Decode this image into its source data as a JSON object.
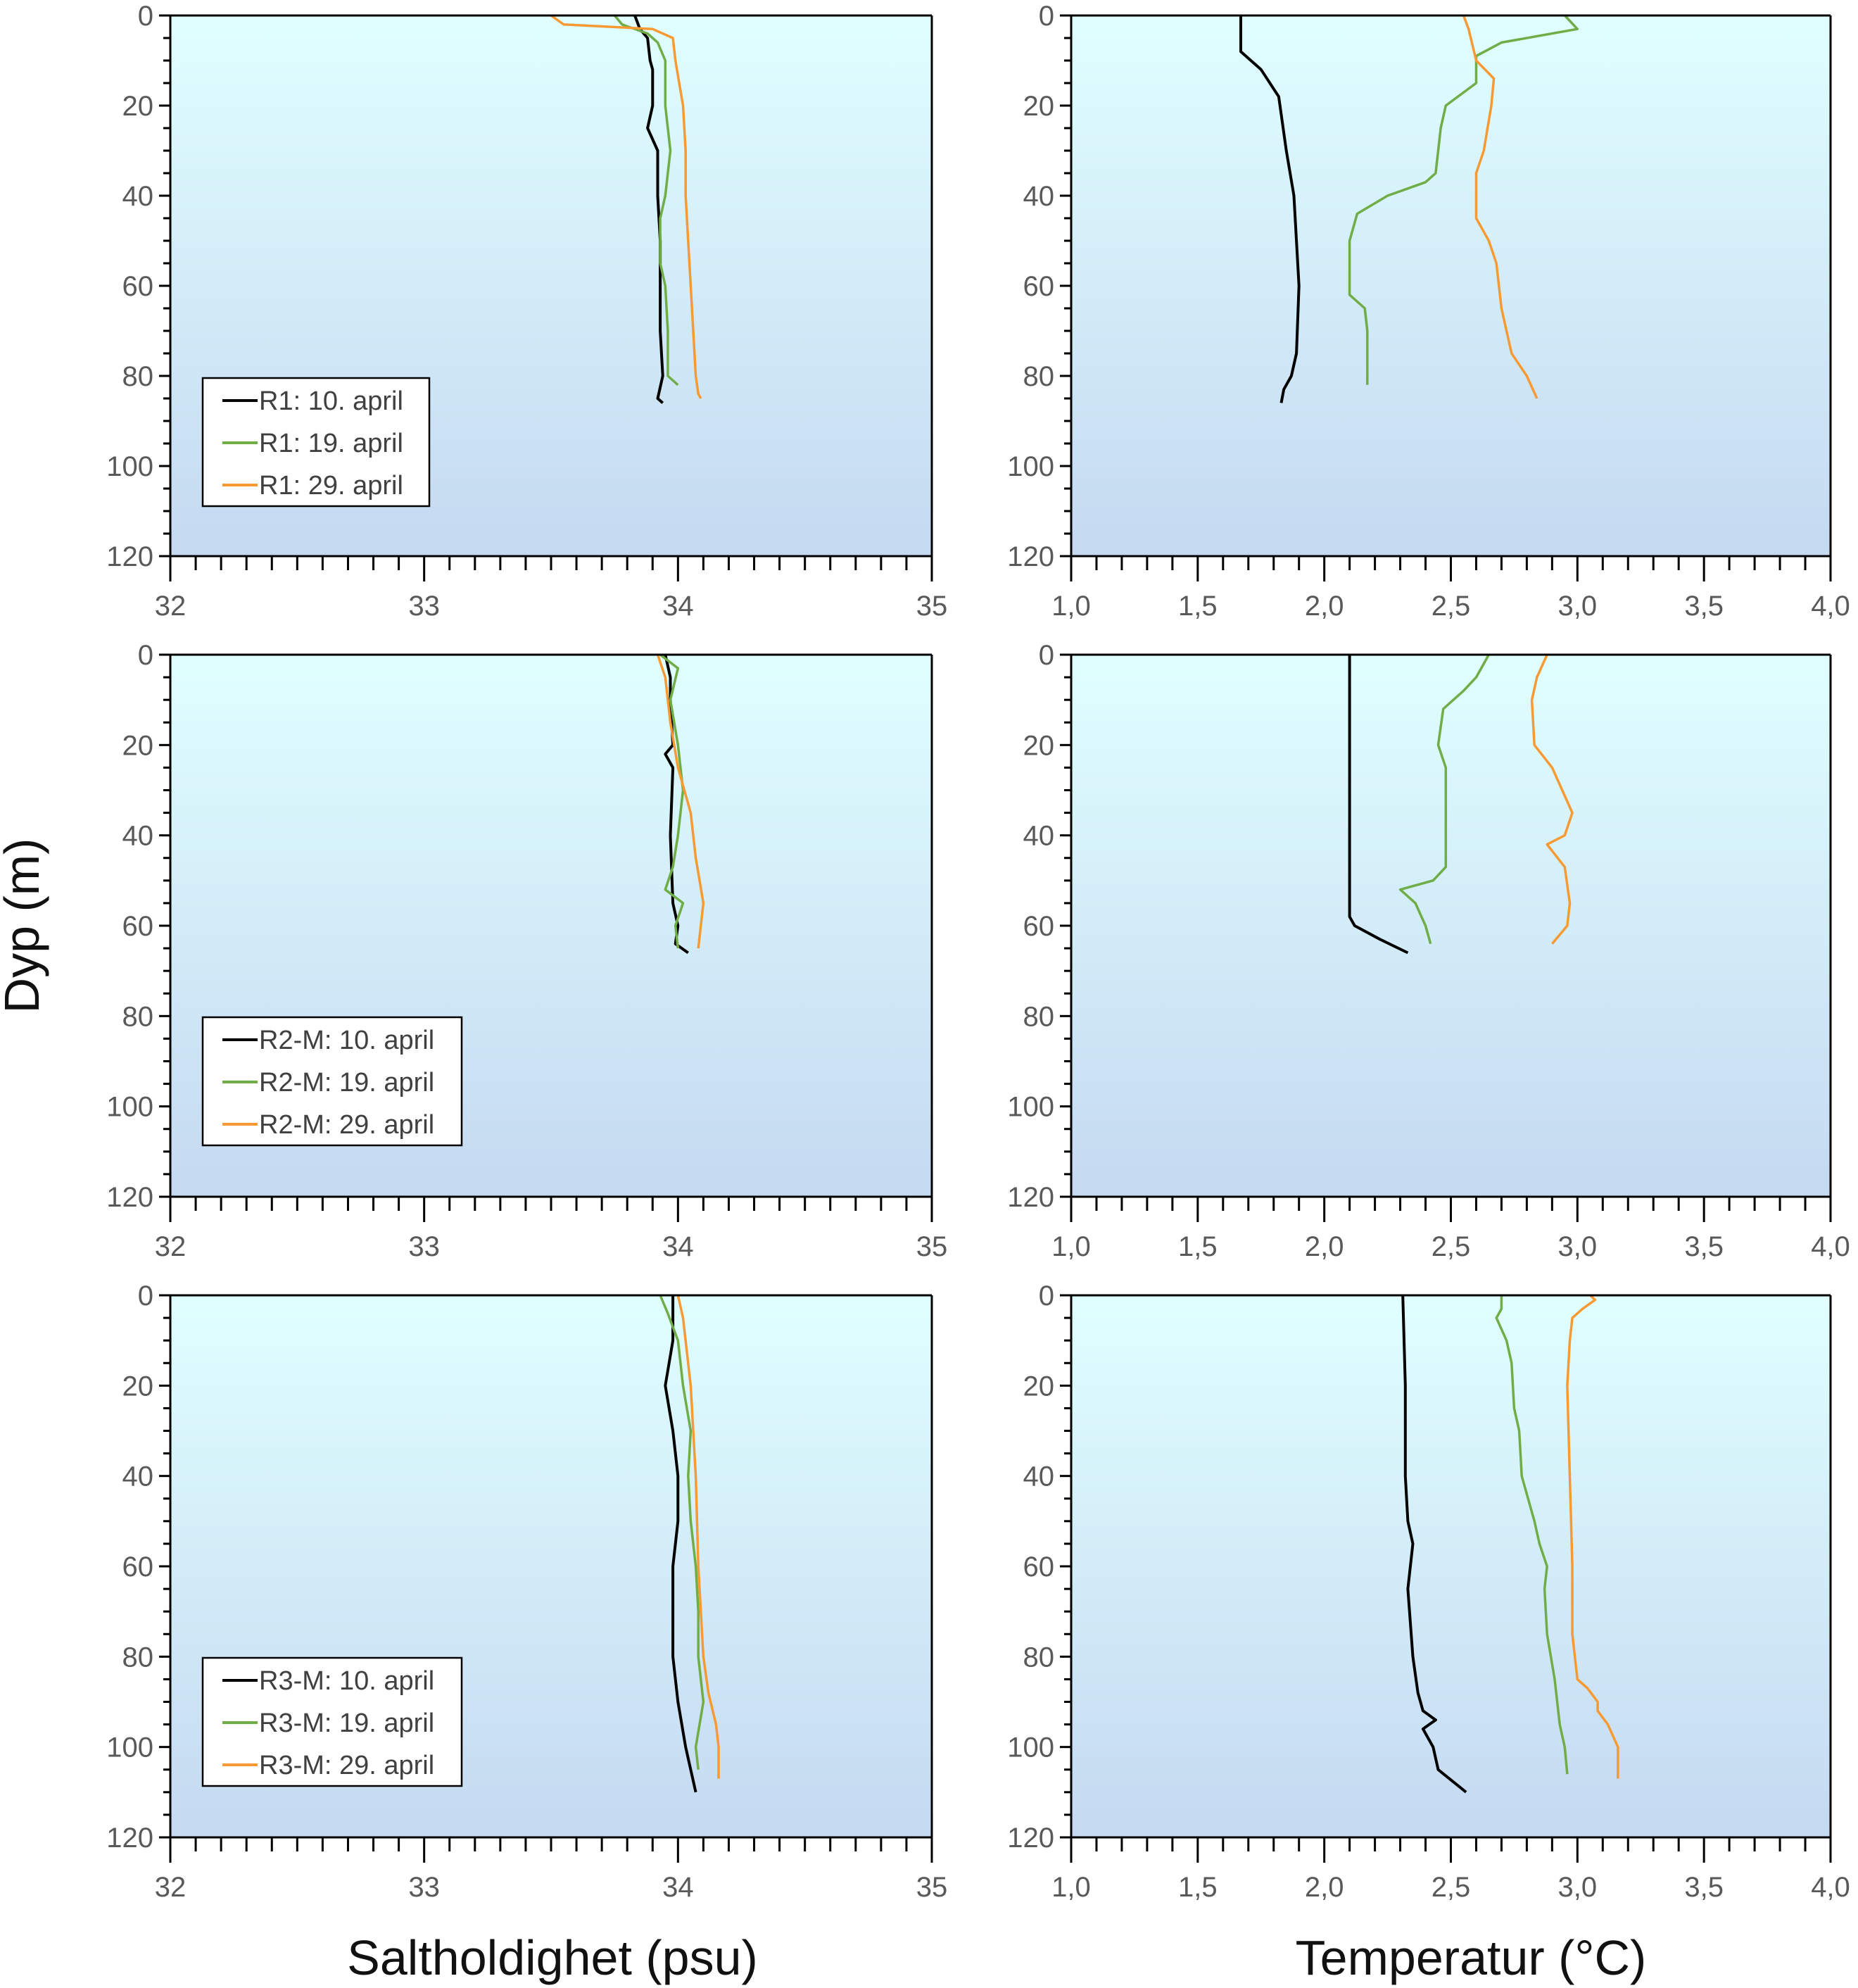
{
  "colors": {
    "s1": "#000000",
    "s2": "#70ad47",
    "s3": "#f79a34",
    "bg_top": "#e0ffff",
    "bg_bottom": "#c5d9f1"
  },
  "ylabel": "Dyp (m)",
  "xlabel_salinity": "Saltholdighet (psu)",
  "xlabel_temperature": "Temperatur (°C)",
  "chart_data": [
    {
      "type": "line",
      "station": "R1",
      "variable": "salinity",
      "xlim": [
        32,
        35
      ],
      "ylim": [
        0,
        120
      ],
      "xticks": [
        "32",
        "33",
        "34",
        "35"
      ],
      "yticks": [
        "0",
        "20",
        "40",
        "60",
        "80",
        "100",
        "120"
      ],
      "legend": "bottom-left",
      "series": [
        {
          "name": "R1: 10. april",
          "depth": [
            0,
            3,
            5,
            10,
            12,
            20,
            25,
            30,
            40,
            50,
            60,
            70,
            80,
            85,
            86
          ],
          "values": [
            33.83,
            33.85,
            33.88,
            33.89,
            33.9,
            33.9,
            33.88,
            33.92,
            33.92,
            33.93,
            33.93,
            33.93,
            33.94,
            33.92,
            33.94
          ]
        },
        {
          "name": "R1: 19. april",
          "depth": [
            0,
            2,
            4,
            6,
            10,
            20,
            30,
            40,
            45,
            50,
            55,
            60,
            70,
            80,
            82
          ],
          "values": [
            33.75,
            33.78,
            33.88,
            33.92,
            33.95,
            33.95,
            33.97,
            33.95,
            33.93,
            33.93,
            33.93,
            33.95,
            33.96,
            33.96,
            34.0
          ]
        },
        {
          "name": "R1: 29. april",
          "depth": [
            0,
            2,
            3,
            5,
            10,
            20,
            30,
            40,
            50,
            60,
            70,
            80,
            84,
            85
          ],
          "values": [
            33.5,
            33.55,
            33.9,
            33.98,
            33.99,
            34.02,
            34.03,
            34.03,
            34.04,
            34.05,
            34.06,
            34.07,
            34.08,
            34.09
          ]
        }
      ]
    },
    {
      "type": "line",
      "station": "R1",
      "variable": "temperature",
      "xlim": [
        1.0,
        4.0
      ],
      "ylim": [
        0,
        120
      ],
      "xticks": [
        "1,0",
        "1,5",
        "2,0",
        "2,5",
        "3,0",
        "3,5",
        "4,0"
      ],
      "yticks": [
        "0",
        "20",
        "40",
        "60",
        "80",
        "100",
        "120"
      ],
      "series": [
        {
          "name": "R1: 10. april",
          "depth": [
            0,
            8,
            12,
            18,
            30,
            40,
            60,
            75,
            80,
            83,
            86
          ],
          "values": [
            1.67,
            1.67,
            1.75,
            1.82,
            1.85,
            1.88,
            1.9,
            1.89,
            1.87,
            1.84,
            1.83
          ]
        },
        {
          "name": "R1: 19. april",
          "depth": [
            0,
            3,
            6,
            9,
            15,
            20,
            25,
            35,
            37,
            40,
            44,
            50,
            60,
            62,
            65,
            70,
            82
          ],
          "values": [
            2.95,
            3.0,
            2.7,
            2.6,
            2.6,
            2.48,
            2.46,
            2.44,
            2.4,
            2.25,
            2.13,
            2.1,
            2.1,
            2.1,
            2.16,
            2.17,
            2.17
          ]
        },
        {
          "name": "R1: 29. april",
          "depth": [
            0,
            3,
            10,
            14,
            20,
            30,
            35,
            45,
            50,
            55,
            65,
            75,
            80,
            85
          ],
          "values": [
            2.55,
            2.57,
            2.6,
            2.67,
            2.66,
            2.63,
            2.6,
            2.6,
            2.65,
            2.68,
            2.7,
            2.74,
            2.8,
            2.84
          ]
        }
      ]
    },
    {
      "type": "line",
      "station": "R2-M",
      "variable": "salinity",
      "xlim": [
        32,
        35
      ],
      "ylim": [
        0,
        120
      ],
      "xticks": [
        "32",
        "33",
        "34",
        "35"
      ],
      "yticks": [
        "0",
        "20",
        "40",
        "60",
        "80",
        "100",
        "120"
      ],
      "legend": "bottom-left",
      "series": [
        {
          "name": "R2-M: 10. april",
          "depth": [
            0,
            5,
            10,
            20,
            22,
            25,
            40,
            55,
            60,
            64,
            66
          ],
          "values": [
            33.95,
            33.97,
            33.97,
            33.98,
            33.95,
            33.98,
            33.97,
            33.98,
            34.0,
            33.99,
            34.04
          ]
        },
        {
          "name": "R2-M: 19. april",
          "depth": [
            0,
            3,
            10,
            20,
            30,
            40,
            47,
            52,
            55,
            60,
            65
          ],
          "values": [
            33.93,
            34.0,
            33.97,
            34.0,
            34.02,
            34.0,
            33.98,
            33.95,
            34.02,
            33.99,
            34.0
          ]
        },
        {
          "name": "R2-M: 29. april",
          "depth": [
            0,
            5,
            15,
            25,
            35,
            45,
            55,
            65
          ],
          "values": [
            33.92,
            33.95,
            33.97,
            34.0,
            34.05,
            34.07,
            34.1,
            34.08
          ]
        }
      ]
    },
    {
      "type": "line",
      "station": "R2-M",
      "variable": "temperature",
      "xlim": [
        1.0,
        4.0
      ],
      "ylim": [
        0,
        120
      ],
      "xticks": [
        "1,0",
        "1,5",
        "2,0",
        "2,5",
        "3,0",
        "3,5",
        "4,0"
      ],
      "yticks": [
        "0",
        "20",
        "40",
        "60",
        "80",
        "100",
        "120"
      ],
      "series": [
        {
          "name": "R2-M: 10. april",
          "depth": [
            0,
            58,
            60,
            63,
            66
          ],
          "values": [
            2.1,
            2.1,
            2.12,
            2.22,
            2.33
          ]
        },
        {
          "name": "R2-M: 19. april",
          "depth": [
            0,
            5,
            8,
            12,
            20,
            25,
            40,
            47,
            50,
            52,
            55,
            60,
            64
          ],
          "values": [
            2.65,
            2.6,
            2.55,
            2.47,
            2.45,
            2.48,
            2.48,
            2.48,
            2.43,
            2.3,
            2.36,
            2.4,
            2.42
          ]
        },
        {
          "name": "R2-M: 29. april",
          "depth": [
            0,
            5,
            10,
            20,
            25,
            35,
            40,
            42,
            47,
            55,
            60,
            64
          ],
          "values": [
            2.88,
            2.84,
            2.82,
            2.83,
            2.9,
            2.98,
            2.95,
            2.88,
            2.95,
            2.97,
            2.96,
            2.9
          ]
        }
      ]
    },
    {
      "type": "line",
      "station": "R3-M",
      "variable": "salinity",
      "xlim": [
        32,
        35
      ],
      "ylim": [
        0,
        120
      ],
      "xticks": [
        "32",
        "33",
        "34",
        "35"
      ],
      "yticks": [
        "0",
        "20",
        "40",
        "60",
        "80",
        "100",
        "120"
      ],
      "legend": "bottom-left",
      "series": [
        {
          "name": "R3-M: 10. april",
          "depth": [
            0,
            10,
            20,
            30,
            40,
            50,
            60,
            70,
            80,
            90,
            100,
            105,
            110
          ],
          "values": [
            33.98,
            33.98,
            33.95,
            33.98,
            34.0,
            34.0,
            33.98,
            33.98,
            33.98,
            34.0,
            34.03,
            34.05,
            34.07
          ]
        },
        {
          "name": "R3-M: 19. april",
          "depth": [
            0,
            4,
            10,
            20,
            30,
            40,
            50,
            60,
            70,
            80,
            90,
            100,
            105
          ],
          "values": [
            33.93,
            33.96,
            34.0,
            34.02,
            34.05,
            34.04,
            34.05,
            34.07,
            34.08,
            34.08,
            34.1,
            34.07,
            34.08
          ]
        },
        {
          "name": "R3-M: 29. april",
          "depth": [
            0,
            5,
            20,
            40,
            60,
            80,
            88,
            95,
            100,
            107
          ],
          "values": [
            34.0,
            34.02,
            34.05,
            34.07,
            34.08,
            34.1,
            34.12,
            34.15,
            34.16,
            34.16
          ]
        }
      ]
    },
    {
      "type": "line",
      "station": "R3-M",
      "variable": "temperature",
      "xlim": [
        1.0,
        4.0
      ],
      "ylim": [
        0,
        120
      ],
      "xticks": [
        "1,0",
        "1,5",
        "2,0",
        "2,5",
        "3,0",
        "3,5",
        "4,0"
      ],
      "yticks": [
        "0",
        "20",
        "40",
        "60",
        "80",
        "100",
        "120"
      ],
      "series": [
        {
          "name": "R3-M: 10. april",
          "depth": [
            0,
            20,
            40,
            50,
            55,
            65,
            80,
            88,
            92,
            94,
            96,
            100,
            105,
            110
          ],
          "values": [
            2.31,
            2.32,
            2.32,
            2.33,
            2.35,
            2.33,
            2.35,
            2.37,
            2.39,
            2.44,
            2.39,
            2.43,
            2.45,
            2.56
          ]
        },
        {
          "name": "R3-M: 19. april",
          "depth": [
            0,
            3,
            5,
            10,
            15,
            25,
            30,
            40,
            50,
            55,
            60,
            65,
            75,
            85,
            95,
            100,
            106
          ],
          "values": [
            2.7,
            2.7,
            2.68,
            2.72,
            2.74,
            2.75,
            2.77,
            2.78,
            2.83,
            2.85,
            2.88,
            2.87,
            2.88,
            2.91,
            2.93,
            2.95,
            2.96
          ]
        },
        {
          "name": "R3-M: 29. april",
          "depth": [
            0,
            1,
            3,
            5,
            10,
            20,
            40,
            60,
            75,
            85,
            87,
            90,
            92,
            95,
            100,
            107
          ],
          "values": [
            3.05,
            3.07,
            3.02,
            2.98,
            2.97,
            2.96,
            2.97,
            2.98,
            2.98,
            3.0,
            3.04,
            3.08,
            3.08,
            3.12,
            3.16,
            3.16
          ]
        }
      ]
    }
  ]
}
